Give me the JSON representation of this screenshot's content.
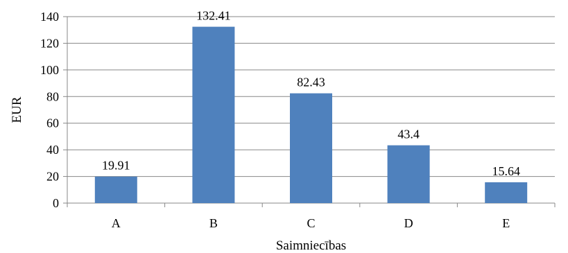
{
  "chart_data": {
    "type": "bar",
    "title": "",
    "xlabel": "Saimniecības",
    "ylabel": "EUR",
    "categories": [
      "A",
      "B",
      "C",
      "D",
      "E"
    ],
    "values": [
      19.91,
      132.41,
      82.43,
      43.4,
      15.64
    ],
    "value_labels": [
      "19.91",
      "132.41",
      "82.43",
      "43.4",
      "15.64"
    ],
    "ylim": [
      0,
      140
    ],
    "yticks": [
      0,
      20,
      40,
      60,
      80,
      100,
      120,
      140
    ],
    "grid": true,
    "legend": "none",
    "bar_color": "#4f81bd",
    "grid_color": "#878787"
  }
}
